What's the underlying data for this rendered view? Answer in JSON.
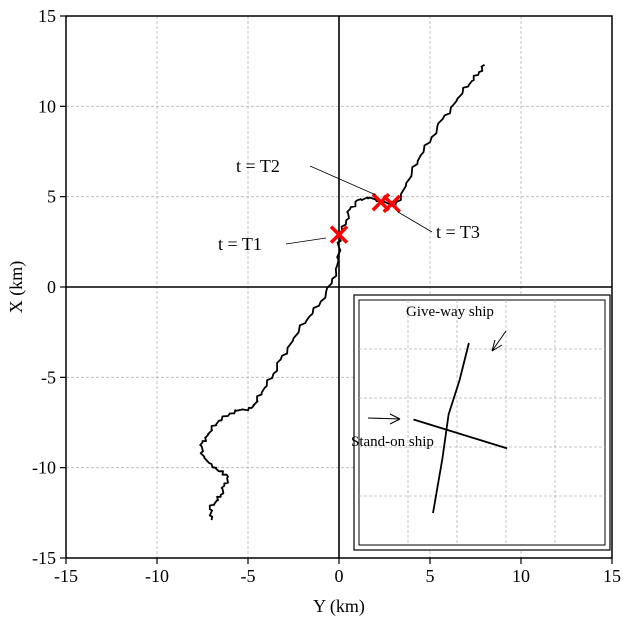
{
  "chart_data": {
    "type": "line",
    "xlabel": "Y (km)",
    "ylabel": "X (km)",
    "xlim": [
      -15,
      15
    ],
    "ylim": [
      -15,
      15
    ],
    "xticks": [
      -15,
      -10,
      -5,
      0,
      5,
      10,
      15
    ],
    "yticks": [
      -15,
      -10,
      -5,
      0,
      5,
      10,
      15
    ],
    "grid": true,
    "series": [
      {
        "color": "#000000",
        "points": [
          [
            -7.0,
            -12.9
          ],
          [
            -7.1,
            -12.3
          ],
          [
            -6.7,
            -11.8
          ],
          [
            -6.5,
            -11.5
          ],
          [
            -6.3,
            -11.0
          ],
          [
            -6.1,
            -10.5
          ],
          [
            -6.6,
            -10.2
          ],
          [
            -7.0,
            -9.8
          ],
          [
            -7.6,
            -9.2
          ],
          [
            -7.5,
            -8.6
          ],
          [
            -7.3,
            -8.3
          ],
          [
            -7.0,
            -7.9
          ],
          [
            -6.6,
            -7.4
          ],
          [
            -6.0,
            -7.0
          ],
          [
            -5.4,
            -6.8
          ],
          [
            -4.8,
            -6.7
          ],
          [
            -4.5,
            -6.3
          ],
          [
            -4.1,
            -5.6
          ],
          [
            -3.6,
            -4.8
          ],
          [
            -3.2,
            -4.0
          ],
          [
            -2.7,
            -3.2
          ],
          [
            -2.2,
            -2.4
          ],
          [
            -1.6,
            -1.6
          ],
          [
            -1.0,
            -0.8
          ],
          [
            -0.4,
            0.2
          ],
          [
            -0.1,
            1.2
          ],
          [
            0.0,
            2.2
          ],
          [
            0.1,
            2.9
          ],
          [
            0.4,
            3.7
          ],
          [
            0.6,
            4.3
          ],
          [
            1.0,
            4.8
          ],
          [
            1.6,
            4.9
          ],
          [
            2.3,
            4.8
          ],
          [
            2.8,
            4.6
          ],
          [
            3.1,
            4.5
          ],
          [
            3.5,
            5.3
          ],
          [
            4.0,
            6.3
          ],
          [
            4.5,
            7.3
          ],
          [
            5.1,
            8.3
          ],
          [
            5.7,
            9.3
          ],
          [
            6.3,
            10.1
          ],
          [
            6.8,
            10.8
          ],
          [
            7.3,
            11.4
          ],
          [
            7.7,
            11.9
          ],
          [
            8.0,
            12.3
          ]
        ]
      }
    ],
    "markers": [
      {
        "label": "t = T1",
        "x": 0.0,
        "y": 2.9,
        "color": "#ff0000"
      },
      {
        "label": "t = T2",
        "x": 2.3,
        "y": 4.7,
        "color": "#ff0000"
      },
      {
        "label": "t = T3",
        "x": 2.9,
        "y": 4.6,
        "color": "#ff0000"
      }
    ],
    "inset": {
      "labels": [
        "Give-way ship",
        "Stand-on ship"
      ],
      "lines": [
        {
          "name_ref": "Give-way ship",
          "points": [
            [
              0.0,
              0.0
            ],
            [
              0.12,
              0.32
            ],
            [
              0.2,
              0.58
            ],
            [
              0.34,
              0.78
            ],
            [
              0.46,
              1.0
            ]
          ]
        },
        {
          "name_ref": "Stand-on ship",
          "points": [
            [
              -0.25,
              0.55
            ],
            [
              0.95,
              0.38
            ]
          ]
        }
      ]
    }
  }
}
